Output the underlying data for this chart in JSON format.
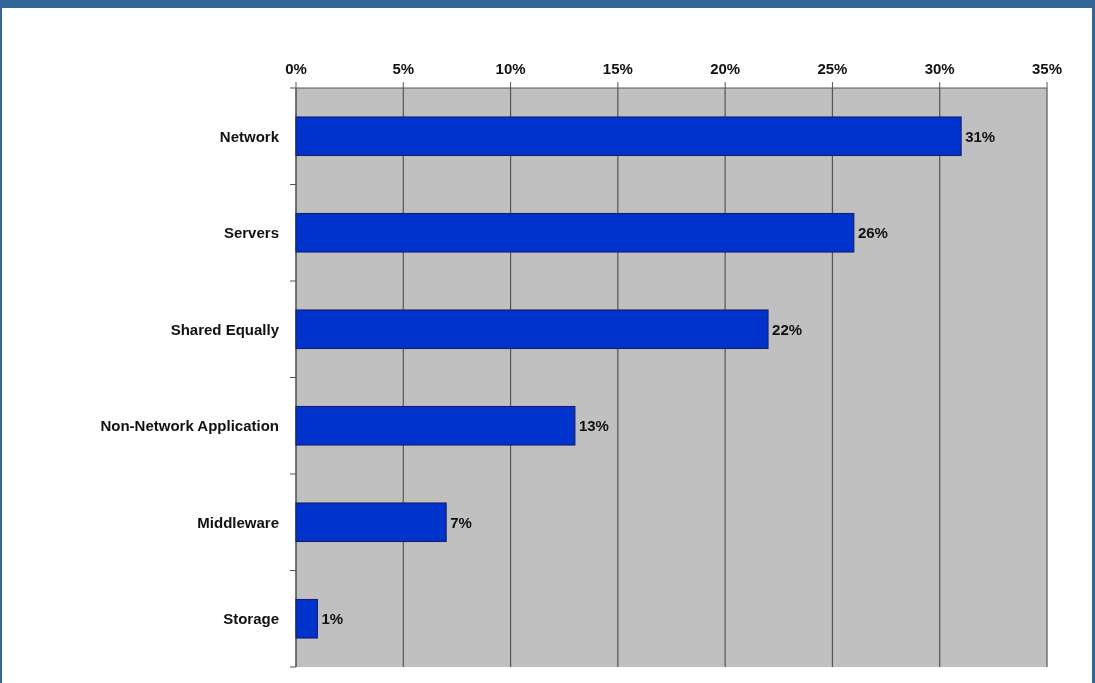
{
  "chart_data": {
    "type": "bar",
    "orientation": "horizontal",
    "categories": [
      "Network",
      "Servers",
      "Shared Equally",
      "Non-Network Application",
      "Middleware",
      "Storage"
    ],
    "values": [
      31,
      26,
      22,
      13,
      7,
      1
    ],
    "value_labels": [
      "31%",
      "26%",
      "22%",
      "13%",
      "7%",
      "1%"
    ],
    "color": "#0033cc",
    "xlim": [
      0,
      35
    ],
    "xticks": [
      {
        "value": 0,
        "label": "0%"
      },
      {
        "value": 5,
        "label": "5%"
      },
      {
        "value": 10,
        "label": "10%"
      },
      {
        "value": 15,
        "label": "15%"
      },
      {
        "value": 20,
        "label": "20%"
      },
      {
        "value": 25,
        "label": "25%"
      },
      {
        "value": 30,
        "label": "30%"
      },
      {
        "value": 35,
        "label": "35%"
      }
    ],
    "grid": "x"
  }
}
